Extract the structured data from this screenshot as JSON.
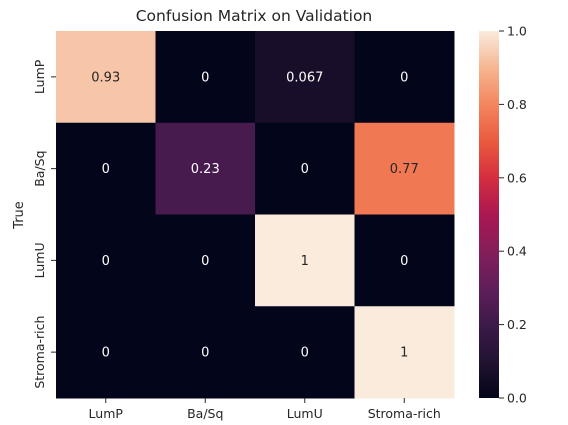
{
  "chart_data": {
    "type": "heatmap",
    "title": "Confusion Matrix on Validation",
    "xlabel": "",
    "ylabel": "True",
    "row_labels": [
      "LumP",
      "Ba/Sq",
      "LumU",
      "Stroma-rich"
    ],
    "col_labels": [
      "LumP",
      "Ba/Sq",
      "LumU",
      "Stroma-rich"
    ],
    "values": [
      [
        0.93,
        0,
        0.067,
        0
      ],
      [
        0,
        0.23,
        0,
        0.77
      ],
      [
        0,
        0,
        1,
        0
      ],
      [
        0,
        0,
        0,
        1
      ]
    ],
    "cell_labels": [
      [
        "0.93",
        "0",
        "0.067",
        "0"
      ],
      [
        "0",
        "0.23",
        "0",
        "0.77"
      ],
      [
        "0",
        "0",
        "1",
        "0"
      ],
      [
        "0",
        "0",
        "0",
        "1"
      ]
    ],
    "colorbar": {
      "colormap": "rocket",
      "range": [
        0,
        1
      ],
      "ticks": [
        "0.0",
        "0.2",
        "0.4",
        "0.6",
        "0.8",
        "1.0"
      ]
    }
  }
}
